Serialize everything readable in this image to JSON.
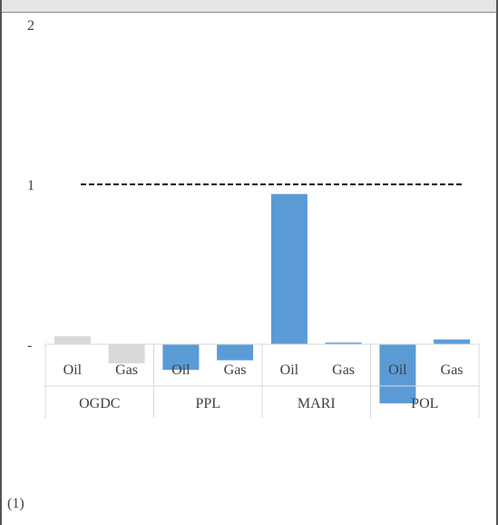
{
  "chart_data": {
    "type": "bar",
    "categories": [
      "Oil",
      "Gas",
      "Oil",
      "Gas",
      "Oil",
      "Gas",
      "Oil",
      "Gas"
    ],
    "groups": [
      "OGDC",
      "PPL",
      "MARI",
      "POL"
    ],
    "values": [
      0.05,
      -0.12,
      -0.16,
      -0.1,
      0.94,
      0.01,
      -0.37,
      0.03
    ],
    "bar_colors": [
      "#d9d9d9",
      "#d9d9d9",
      "#5b9bd5",
      "#5b9bd5",
      "#5b9bd5",
      "#5b9bd5",
      "#5b9bd5",
      "#5b9bd5"
    ],
    "y_ticks": [
      {
        "value": 2,
        "label": "2"
      },
      {
        "value": 1,
        "label": "1"
      },
      {
        "value": 0,
        "label": "-"
      }
    ],
    "ylim": [
      -0.5,
      2
    ],
    "reference_line": {
      "value": 1,
      "style": "dashed",
      "color": "#000000"
    },
    "bottom_left_label": "(1)",
    "title": "",
    "xlabel": "",
    "ylabel": "",
    "grid": false,
    "legend": "none"
  }
}
